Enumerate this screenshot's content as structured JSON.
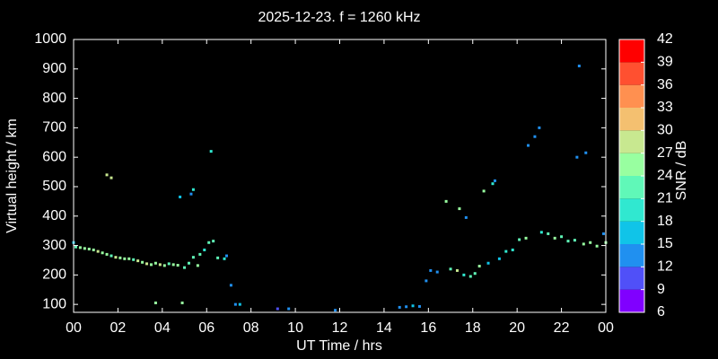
{
  "chart_data": {
    "type": "scatter",
    "title": "2025-12-23. f = 1260 kHz",
    "x_label": "UT Time / hrs",
    "y_label": "Virtual height / km",
    "colorbar_label": "SNR / dB",
    "xlim": [
      0,
      24
    ],
    "xticks": [
      {
        "value": 0,
        "label": "00"
      },
      {
        "value": 2,
        "label": "02"
      },
      {
        "value": 4,
        "label": "04"
      },
      {
        "value": 6,
        "label": "06"
      },
      {
        "value": 8,
        "label": "08"
      },
      10,
      12,
      14,
      16,
      18,
      20,
      22,
      {
        "value": 24,
        "label": "00"
      }
    ],
    "ylim": [
      73,
      1000
    ],
    "yticks": [
      100,
      200,
      300,
      400,
      500,
      600,
      700,
      800,
      900,
      1000
    ],
    "clim": [
      6,
      42
    ],
    "cticks": [
      6,
      9,
      12,
      15,
      18,
      21,
      24,
      27,
      30,
      33,
      36,
      39,
      42
    ],
    "colors": [
      "#8000ff",
      "#5050f8",
      "#2090f0",
      "#10c4e8",
      "#30e8d0",
      "#60f8b8",
      "#98ffa0",
      "#c8e890",
      "#f4c070",
      "#ff9050",
      "#ff5030",
      "#ff0000"
    ],
    "x": [
      0,
      0.1,
      0.3,
      0.5,
      0.7,
      0.9,
      1.1,
      1.3,
      1.5,
      1.7,
      1.9,
      2.1,
      2.3,
      2.5,
      2.7,
      2.9,
      3.1,
      3.3,
      3.5,
      3.7,
      3.9,
      4.1,
      4.3,
      4.5,
      4.7,
      5.0,
      5.2,
      5.4,
      5.6,
      5.7,
      5.9,
      6.1,
      6.3,
      6.5,
      6.8,
      6.9,
      7.1,
      7.3,
      7.5,
      1.5,
      1.7,
      4.8,
      5.3,
      5.4,
      6.2,
      3.7,
      4.9,
      9.2,
      9.7,
      11.8,
      14.7,
      15.0,
      15.3,
      15.6,
      15.9,
      16.1,
      16.4,
      16.8,
      17.0,
      17.3,
      17.4,
      17.6,
      17.7,
      17.9,
      18.1,
      18.3,
      18.5,
      18.7,
      18.9,
      19.0,
      19.2,
      19.5,
      19.8,
      20.1,
      20.4,
      20.5,
      20.8,
      21.0,
      21.1,
      21.4,
      21.7,
      22.0,
      22.3,
      22.6,
      22.7,
      22.8,
      23.1,
      23.0,
      23.3,
      23.6,
      23.9,
      24.0
    ],
    "values": [
      310,
      295,
      293,
      290,
      288,
      285,
      280,
      275,
      270,
      265,
      260,
      258,
      255,
      255,
      252,
      248,
      243,
      238,
      235,
      240,
      235,
      232,
      238,
      235,
      233,
      225,
      240,
      260,
      232,
      270,
      285,
      310,
      315,
      258,
      255,
      265,
      165,
      100,
      100,
      540,
      530,
      465,
      475,
      490,
      620,
      105,
      105,
      85,
      85,
      80,
      90,
      92,
      95,
      93,
      180,
      215,
      210,
      450,
      220,
      215,
      425,
      200,
      395,
      195,
      205,
      230,
      485,
      240,
      510,
      520,
      255,
      280,
      285,
      320,
      325,
      640,
      670,
      700,
      345,
      340,
      325,
      330,
      315,
      318,
      600,
      910,
      615,
      305,
      310,
      298,
      340,
      310
    ],
    "snr": [
      15,
      22,
      24,
      25,
      26,
      25,
      27,
      26,
      24,
      22,
      28,
      26,
      24,
      25,
      23,
      27,
      25,
      28,
      24,
      26,
      27,
      25,
      23,
      26,
      24,
      23,
      22,
      21,
      24,
      22,
      19,
      23,
      21,
      22,
      20,
      14,
      13,
      14,
      16,
      27,
      28,
      16,
      13,
      20,
      19,
      26,
      24,
      11,
      12,
      13,
      13,
      14,
      15,
      12,
      13,
      13,
      14,
      25,
      23,
      27,
      24,
      20,
      14,
      22,
      23,
      24,
      24,
      16,
      20,
      13,
      15,
      20,
      19,
      22,
      24,
      14,
      12,
      13,
      18,
      22,
      25,
      21,
      23,
      22,
      13,
      14,
      13,
      26,
      24,
      25,
      13,
      24
    ]
  }
}
